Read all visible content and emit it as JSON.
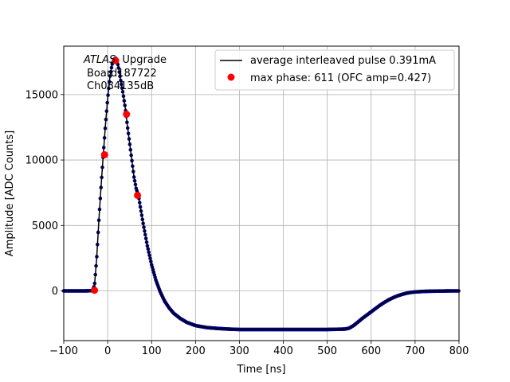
{
  "chart_data": {
    "type": "line",
    "xlabel": "Time [ns]",
    "ylabel": "Amplitude [ADC Counts]",
    "xlim": [
      -100,
      800
    ],
    "ylim": [
      -3800,
      18700
    ],
    "xticks": [
      -100,
      0,
      100,
      200,
      300,
      400,
      500,
      600,
      700,
      800
    ],
    "xtick_labels": [
      "−100",
      "0",
      "100",
      "200",
      "300",
      "400",
      "500",
      "600",
      "700",
      "800"
    ],
    "yticks": [
      0,
      5000,
      10000,
      15000
    ],
    "ytick_labels": [
      "0",
      "5000",
      "10000",
      "15000"
    ],
    "grid": true,
    "legend_position": "top-right",
    "annotation": {
      "atlas": "ATLAS",
      "upgrade": "Upgrade",
      "line2": "Board187722",
      "line3": "Ch084135dB"
    },
    "series": [
      {
        "name": "average interleaved pulse 0.391mA",
        "kind": "line",
        "color": "#000000",
        "marker_color": "#00008b",
        "x": [
          -100,
          -50,
          -35,
          -30,
          -25,
          -20,
          -15,
          -10,
          -5,
          0,
          5,
          10,
          15,
          18,
          22,
          25,
          30,
          35,
          40,
          45,
          50,
          55,
          60,
          65,
          70,
          75,
          80,
          85,
          90,
          100,
          110,
          120,
          130,
          140,
          150,
          165,
          180,
          200,
          225,
          250,
          275,
          300,
          350,
          400,
          450,
          500,
          540,
          550,
          560,
          570,
          580,
          590,
          600,
          610,
          620,
          630,
          640,
          650,
          660,
          670,
          680,
          690,
          700,
          720,
          740,
          760,
          780,
          800
        ],
        "y": [
          0,
          0,
          20,
          400,
          2500,
          5400,
          8000,
          10400,
          12700,
          14700,
          16300,
          17300,
          17700,
          17800,
          17500,
          17000,
          16000,
          15100,
          14000,
          12600,
          11300,
          10000,
          8700,
          7800,
          7300,
          6300,
          5300,
          4400,
          3500,
          2000,
          800,
          -100,
          -800,
          -1300,
          -1700,
          -2100,
          -2400,
          -2650,
          -2800,
          -2870,
          -2920,
          -2950,
          -2950,
          -2950,
          -2950,
          -2950,
          -2920,
          -2850,
          -2650,
          -2380,
          -2100,
          -1850,
          -1600,
          -1350,
          -1100,
          -880,
          -680,
          -520,
          -380,
          -270,
          -180,
          -120,
          -80,
          -40,
          -20,
          -10,
          0,
          0
        ]
      },
      {
        "name": "max phase: 611 (OFC amp=0.427)",
        "kind": "points",
        "color": "#ff0000",
        "x": [
          -30,
          -7,
          18,
          43,
          68
        ],
        "y": [
          50,
          10400,
          17600,
          13500,
          7300
        ]
      }
    ]
  }
}
